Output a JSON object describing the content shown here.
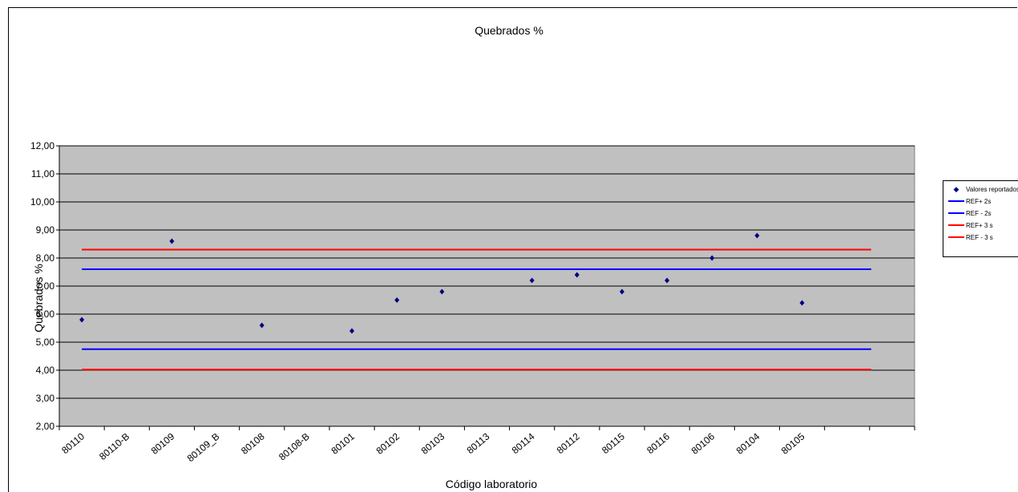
{
  "chart_data": {
    "type": "scatter",
    "title": "Quebrados %",
    "xlabel": "Código laboratorio",
    "ylabel": "Quebrados %",
    "categories": [
      "80110",
      "80110-B",
      "80109",
      "80109_B",
      "80108",
      "80108-B",
      "80101",
      "80102",
      "80103",
      "80113",
      "80114",
      "80112",
      "80115",
      "80116",
      "80106",
      "80104",
      "80105"
    ],
    "ylim": [
      2,
      12
    ],
    "yticks": [
      "2,00",
      "3,00",
      "4,00",
      "5,00",
      "6,00",
      "7,00",
      "8,00",
      "9,00",
      "10,00",
      "11,00",
      "12,00"
    ],
    "series": [
      {
        "name": "Valores reportados",
        "kind": "points",
        "color": "#000080",
        "points": [
          {
            "x": 1,
            "y": 5.8
          },
          {
            "x": 3,
            "y": 8.6
          },
          {
            "x": 5,
            "y": 5.6
          },
          {
            "x": 7,
            "y": 5.4
          },
          {
            "x": 8,
            "y": 6.5
          },
          {
            "x": 9,
            "y": 6.8
          },
          {
            "x": 11,
            "y": 7.2
          },
          {
            "x": 12,
            "y": 7.4
          },
          {
            "x": 13,
            "y": 6.8
          },
          {
            "x": 14,
            "y": 7.2
          },
          {
            "x": 15,
            "y": 8.0
          },
          {
            "x": 16,
            "y": 8.8
          },
          {
            "x": 17,
            "y": 6.4
          }
        ]
      },
      {
        "name": "REF+ 2s",
        "kind": "hline",
        "color": "#0000ff",
        "y": 7.6
      },
      {
        "name": "REF - 2s",
        "kind": "hline",
        "color": "#0000ff",
        "y": 4.75
      },
      {
        "name": "REF+ 3 s",
        "kind": "hline",
        "color": "#ff0000",
        "y": 8.3
      },
      {
        "name": "REF - 3 s",
        "kind": "hline",
        "color": "#ff0000",
        "y": 4.02
      }
    ],
    "grid": true,
    "legend_position": "right",
    "plot_background": "#c0c0c0"
  }
}
